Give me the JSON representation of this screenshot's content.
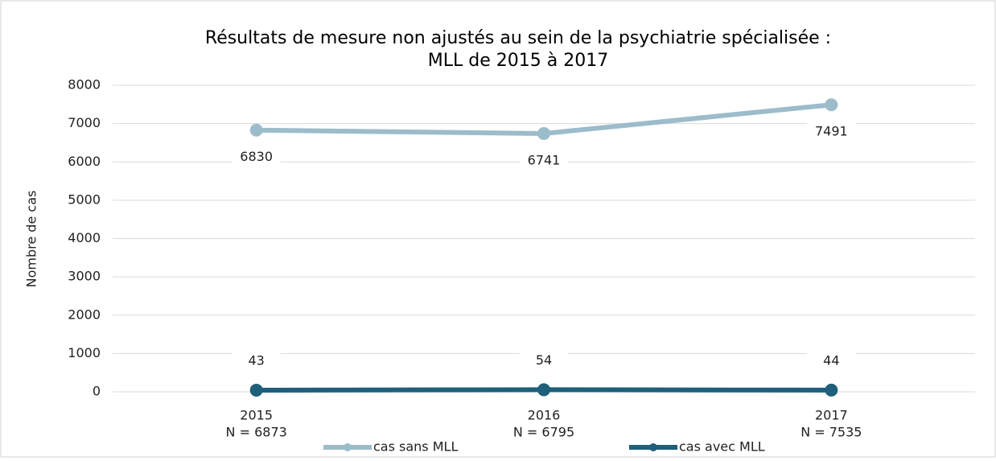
{
  "chart_data": {
    "type": "line",
    "title": "Résultats de mesure non ajustés au sein de la psychiatrie spécialisée :",
    "subtitle": "MLL de 2015 à 2017",
    "y_label": "Nombre de cas",
    "categories": [
      "2015",
      "2016",
      "2017"
    ],
    "category_sublabels": [
      "N = 6873",
      "N = 6795",
      "N = 7535"
    ],
    "series": [
      {
        "name": "cas sans MLL",
        "color": "#9dbccb",
        "values": [
          6830,
          6741,
          7491
        ]
      },
      {
        "name": "cas avec MLL",
        "color": "#1f5f7a",
        "values": [
          43,
          54,
          44
        ]
      }
    ],
    "ylim": [
      0,
      8000
    ],
    "yticks": [
      0,
      1000,
      2000,
      3000,
      4000,
      5000,
      6000,
      7000,
      8000
    ],
    "grid": true,
    "legend": "bottom"
  }
}
